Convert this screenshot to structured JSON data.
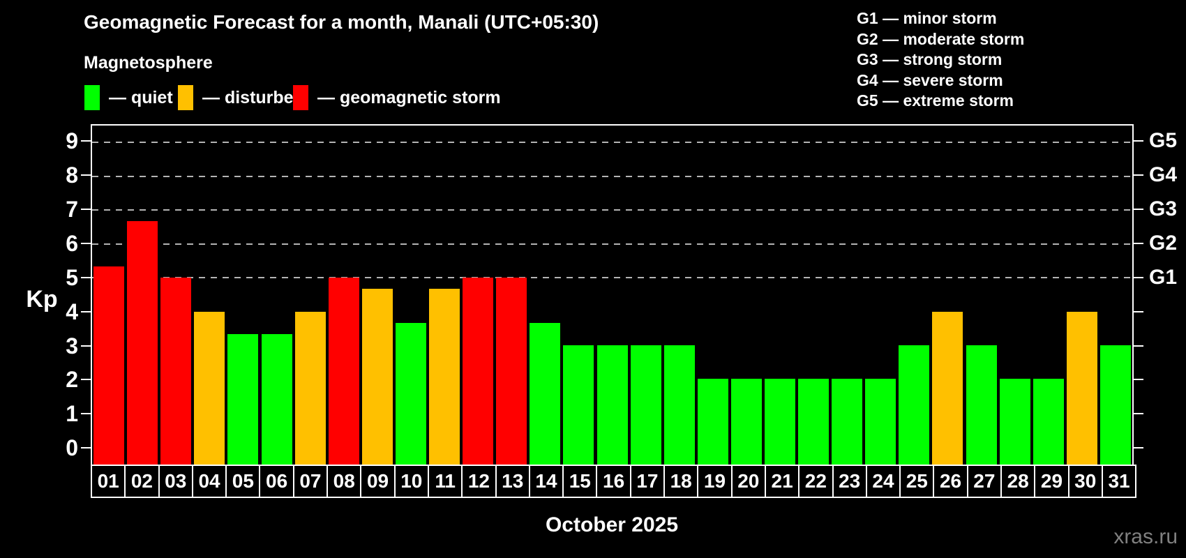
{
  "title": "Geomagnetic Forecast for a month, Manali (UTC+05:30)",
  "subtitle": "Magnetosphere",
  "status_legend": [
    {
      "name": "quiet",
      "label": "— quiet",
      "color": "#00ff00"
    },
    {
      "name": "disturbed",
      "label": "— disturbed",
      "color": "#ffc000"
    },
    {
      "name": "storm",
      "label": "— geomagnetic storm",
      "color": "#ff0000"
    }
  ],
  "g_scale_legend": [
    "G1 — minor storm",
    "G2 — moderate storm",
    "G3 — strong storm",
    "G4 — severe storm",
    "G5 — extreme storm"
  ],
  "watermark": "xras.ru",
  "chart_data": {
    "type": "bar",
    "title": "Geomagnetic Forecast for a month, Manali (UTC+05:30)",
    "xlabel": "October 2025",
    "ylabel": "Kp",
    "ylim": [
      -0.53,
      9.5
    ],
    "left_ticks": [
      0,
      1,
      2,
      3,
      4,
      5,
      6,
      7,
      8,
      9
    ],
    "gridlines": [
      5,
      6,
      7,
      8,
      9
    ],
    "grid_style": "horizontal dashed gray at storm levels",
    "right_axis": [
      {
        "kp": 5,
        "label": "G1"
      },
      {
        "kp": 6,
        "label": "G2"
      },
      {
        "kp": 7,
        "label": "G3"
      },
      {
        "kp": 8,
        "label": "G4"
      },
      {
        "kp": 9,
        "label": "G5"
      }
    ],
    "categories": [
      "01",
      "02",
      "03",
      "04",
      "05",
      "06",
      "07",
      "08",
      "09",
      "10",
      "11",
      "12",
      "13",
      "14",
      "15",
      "16",
      "17",
      "18",
      "19",
      "20",
      "21",
      "22",
      "23",
      "24",
      "25",
      "26",
      "27",
      "28",
      "29",
      "30",
      "31"
    ],
    "values": [
      5.33,
      6.67,
      5.0,
      4.0,
      3.33,
      3.33,
      4.0,
      5.0,
      4.67,
      3.67,
      4.67,
      5.0,
      5.0,
      3.67,
      3.0,
      3.0,
      3.0,
      3.0,
      2.0,
      2.0,
      2.0,
      2.0,
      2.0,
      2.0,
      3.0,
      4.0,
      3.0,
      2.0,
      2.0,
      4.0,
      3.0
    ],
    "statuses": [
      "storm",
      "storm",
      "storm",
      "disturbed",
      "quiet",
      "quiet",
      "disturbed",
      "storm",
      "disturbed",
      "quiet",
      "disturbed",
      "storm",
      "storm",
      "quiet",
      "quiet",
      "quiet",
      "quiet",
      "quiet",
      "quiet",
      "quiet",
      "quiet",
      "quiet",
      "quiet",
      "quiet",
      "quiet",
      "disturbed",
      "quiet",
      "quiet",
      "quiet",
      "disturbed",
      "quiet"
    ],
    "status_colors": {
      "quiet": "#00ff00",
      "disturbed": "#ffc000",
      "storm": "#ff0000"
    }
  }
}
